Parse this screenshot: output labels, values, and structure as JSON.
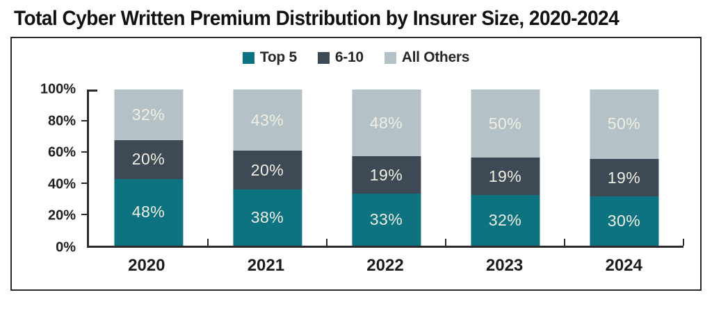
{
  "title": "Total Cyber Written Premium Distribution by Insurer Size, 2020-2024",
  "colors": {
    "top5": "#0e7380",
    "rank6_10": "#3d4a55",
    "all_others": "#b4c2c7",
    "axis": "#2b292c",
    "bar_label": "#f1eee3",
    "text": "#231f20",
    "background": "#ffffff"
  },
  "chart_data": {
    "type": "bar",
    "stacked": true,
    "title": "Total Cyber Written Premium Distribution by Insurer Size, 2020-2024",
    "categories": [
      "2020",
      "2021",
      "2022",
      "2023",
      "2024"
    ],
    "series": [
      {
        "name": "Top 5",
        "color": "#0e7380",
        "values": [
          48,
          38,
          33,
          32,
          30
        ]
      },
      {
        "name": "6-10",
        "color": "#3d4a55",
        "values": [
          20,
          20,
          19,
          19,
          19
        ]
      },
      {
        "name": "All Others",
        "color": "#b4c2c7",
        "values": [
          32,
          43,
          48,
          50,
          50
        ]
      }
    ],
    "value_suffix": "%",
    "ylim": [
      0,
      100
    ],
    "y_ticks": [
      0,
      20,
      40,
      60,
      80,
      100
    ],
    "y_tick_labels": [
      "0%",
      "20%",
      "40%",
      "60%",
      "80%",
      "100%"
    ],
    "xlabel": "",
    "ylabel": "",
    "grid": false,
    "legend_position": "top-center"
  }
}
